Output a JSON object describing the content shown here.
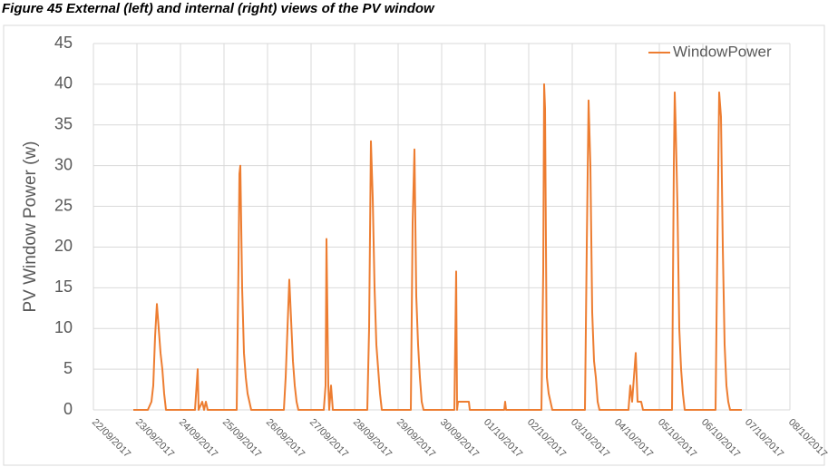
{
  "chart_data": {
    "type": "line",
    "title": "Figure 45 External (left) and internal (right) views of the PV window",
    "y_label": "PV Window Power (w)",
    "legend": "top-right",
    "grid": true,
    "ylim": [
      0,
      45
    ],
    "yticks": [
      0,
      5,
      10,
      15,
      20,
      25,
      30,
      35,
      40,
      45
    ],
    "xlim": [
      "2017-09-22",
      "2017-10-08"
    ],
    "xticks": [
      {
        "value": "2017-09-22",
        "label": "22/09/2017"
      },
      {
        "value": "2017-09-23",
        "label": "23/09/2017"
      },
      {
        "value": "2017-09-24",
        "label": "24/09/2017"
      },
      {
        "value": "2017-09-25",
        "label": "25/09/2017"
      },
      {
        "value": "2017-09-26",
        "label": "26/09/2017"
      },
      {
        "value": "2017-09-27",
        "label": "27/09/2017"
      },
      {
        "value": "2017-09-28",
        "label": "28/09/2017"
      },
      {
        "value": "2017-09-29",
        "label": "29/09/2017"
      },
      {
        "value": "2017-09-30",
        "label": "30/09/2017"
      },
      {
        "value": "2017-10-01",
        "label": "01/10/2017"
      },
      {
        "value": "2017-10-02",
        "label": "02/10/2017"
      },
      {
        "value": "2017-10-03",
        "label": "03/10/2017"
      },
      {
        "value": "2017-10-04",
        "label": "04/10/2017"
      },
      {
        "value": "2017-10-05",
        "label": "05/10/2017"
      },
      {
        "value": "2017-10-06",
        "label": "06/10/2017"
      },
      {
        "value": "2017-10-07",
        "label": "07/10/2017"
      },
      {
        "value": "2017-10-08",
        "label": "08/10/2017"
      }
    ],
    "x": [
      "2017-09-22T22:00",
      "2017-09-23T06:00",
      "2017-09-23T08:00",
      "2017-09-23T09:00",
      "2017-09-23T10:00",
      "2017-09-23T11:00",
      "2017-09-23T12:00",
      "2017-09-23T13:00",
      "2017-09-23T14:00",
      "2017-09-23T15:00",
      "2017-09-23T16:00",
      "2017-09-24T08:00",
      "2017-09-24T09:30",
      "2017-09-24T10:00",
      "2017-09-24T12:00",
      "2017-09-24T13:00",
      "2017-09-24T14:00",
      "2017-09-24T15:00",
      "2017-09-25T07:00",
      "2017-09-25T08:00",
      "2017-09-25T08:30",
      "2017-09-25T09:00",
      "2017-09-25T10:00",
      "2017-09-25T11:00",
      "2017-09-25T12:00",
      "2017-09-25T13:00",
      "2017-09-25T14:00",
      "2017-09-25T15:00",
      "2017-09-26T09:00",
      "2017-09-26T10:00",
      "2017-09-26T11:00",
      "2017-09-26T12:00",
      "2017-09-26T13:00",
      "2017-09-26T14:00",
      "2017-09-26T15:00",
      "2017-09-26T16:00",
      "2017-09-26T17:00",
      "2017-09-27T07:00",
      "2017-09-27T08:00",
      "2017-09-27T08:30",
      "2017-09-27T09:30",
      "2017-09-27T10:00",
      "2017-09-27T11:00",
      "2017-09-27T12:00",
      "2017-09-28T07:00",
      "2017-09-28T08:00",
      "2017-09-28T09:00",
      "2017-09-28T10:00",
      "2017-09-28T11:00",
      "2017-09-28T12:00",
      "2017-09-28T13:00",
      "2017-09-28T14:00",
      "2017-09-28T15:00",
      "2017-09-29T07:00",
      "2017-09-29T08:00",
      "2017-09-29T09:00",
      "2017-09-29T10:00",
      "2017-09-29T11:00",
      "2017-09-29T12:00",
      "2017-09-29T13:00",
      "2017-09-29T14:00",
      "2017-09-30T07:00",
      "2017-09-30T08:00",
      "2017-09-30T08:30",
      "2017-09-30T09:00",
      "2017-09-30T15:00",
      "2017-09-30T15:30",
      "2017-10-01T10:30",
      "2017-10-01T11:00",
      "2017-10-01T11:30",
      "2017-10-02T07:00",
      "2017-10-02T08:00",
      "2017-10-02T08:30",
      "2017-10-02T09:00",
      "2017-10-02T10:00",
      "2017-10-02T11:00",
      "2017-10-02T12:00",
      "2017-10-02T13:00",
      "2017-10-03T07:00",
      "2017-10-03T08:00",
      "2017-10-03T09:00",
      "2017-10-03T10:00",
      "2017-10-03T11:00",
      "2017-10-03T12:00",
      "2017-10-03T13:00",
      "2017-10-03T14:00",
      "2017-10-03T15:00",
      "2017-10-04T07:00",
      "2017-10-04T08:00",
      "2017-10-04T09:00",
      "2017-10-04T11:00",
      "2017-10-04T12:00",
      "2017-10-04T14:00",
      "2017-10-04T15:00",
      "2017-10-05T07:00",
      "2017-10-05T08:00",
      "2017-10-05T08:30",
      "2017-10-05T09:00",
      "2017-10-05T10:00",
      "2017-10-05T11:00",
      "2017-10-05T12:00",
      "2017-10-05T13:00",
      "2017-10-05T14:00",
      "2017-10-06T07:00",
      "2017-10-06T08:00",
      "2017-10-06T09:00",
      "2017-10-06T10:00",
      "2017-10-06T11:00",
      "2017-10-06T12:00",
      "2017-10-06T13:00",
      "2017-10-06T14:00",
      "2017-10-06T15:00",
      "2017-10-06T21:30"
    ],
    "series": [
      {
        "name": "WindowPower",
        "color": "#ed7d31",
        "values": [
          0,
          0,
          1,
          3,
          9,
          13,
          10,
          7,
          5,
          2,
          0,
          0,
          5,
          0,
          1,
          0,
          1,
          0,
          0,
          18,
          29,
          30,
          15,
          7,
          4,
          2,
          1,
          0,
          0,
          4,
          10,
          16,
          11,
          6,
          3,
          1,
          0,
          0,
          3,
          21,
          3,
          0,
          3,
          0,
          0,
          10,
          33,
          26,
          15,
          8,
          5,
          2,
          0,
          0,
          23,
          32,
          14,
          8,
          4,
          1,
          0,
          0,
          17,
          0,
          1,
          1,
          0,
          0,
          1,
          0,
          0,
          17,
          40,
          37,
          4,
          2,
          1,
          0,
          0,
          20,
          38,
          30,
          12,
          6,
          4,
          1,
          0,
          0,
          3,
          1,
          7,
          1,
          1,
          0,
          0,
          30,
          39,
          35,
          25,
          10,
          5,
          2,
          0,
          0,
          20,
          39,
          36,
          20,
          8,
          3,
          1,
          0,
          0
        ]
      }
    ]
  }
}
